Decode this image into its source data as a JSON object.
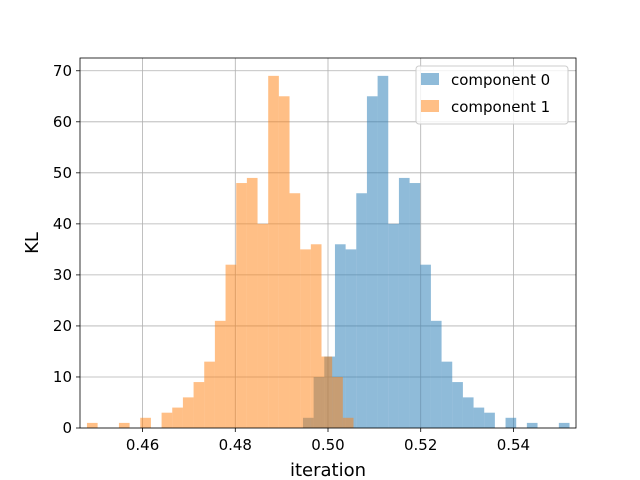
{
  "chart_data": {
    "type": "bar",
    "subtype": "histogram",
    "title": "",
    "xlabel": "iteration",
    "ylabel": "KL",
    "xlim": [
      0.4465,
      0.5535
    ],
    "ylim": [
      0,
      72.5
    ],
    "xticks": [
      0.46,
      0.48,
      0.5,
      0.52,
      0.54
    ],
    "xtick_labels": [
      "0.46",
      "0.48",
      "0.50",
      "0.52",
      "0.54"
    ],
    "yticks": [
      0,
      10,
      20,
      30,
      40,
      50,
      60,
      70
    ],
    "ytick_labels": [
      "0",
      "10",
      "20",
      "30",
      "40",
      "50",
      "60",
      "70"
    ],
    "grid": true,
    "legend_position": "top-right",
    "colors": {
      "component0": "#1f77b4",
      "component1": "#ff7f0e"
    },
    "bar_alpha": 0.5,
    "series": [
      {
        "name": "component 0",
        "color": "#1f77b4",
        "bin_width": 0.0023,
        "bin_starts": [
          0.4946,
          0.4969,
          0.4992,
          0.5015,
          0.5038,
          0.5061,
          0.5084,
          0.5107,
          0.513,
          0.5153,
          0.5176,
          0.5199,
          0.5222,
          0.5245,
          0.5268,
          0.5291,
          0.5314,
          0.5337,
          0.536,
          0.5383,
          0.5406,
          0.5429,
          0.5452,
          0.5475,
          0.5498
        ],
        "counts": [
          2,
          10,
          14,
          36,
          35,
          46,
          65,
          69,
          40,
          49,
          48,
          32,
          21,
          13,
          9,
          6,
          4,
          3,
          0,
          2,
          0,
          1,
          0,
          0,
          1
        ]
      },
      {
        "name": "component 1",
        "color": "#ff7f0e",
        "bin_width": 0.0023,
        "bin_starts": [
          0.448,
          0.4503,
          0.4526,
          0.4549,
          0.4572,
          0.4595,
          0.4618,
          0.4641,
          0.4664,
          0.4687,
          0.471,
          0.4733,
          0.4756,
          0.4779,
          0.4802,
          0.4825,
          0.4848,
          0.4871,
          0.4894,
          0.4917,
          0.494,
          0.4963,
          0.4986,
          0.5009,
          0.5032
        ],
        "counts": [
          1,
          0,
          0,
          1,
          0,
          2,
          0,
          3,
          4,
          6,
          9,
          13,
          21,
          32,
          48,
          49,
          40,
          69,
          65,
          46,
          35,
          36,
          14,
          10,
          2
        ]
      }
    ]
  }
}
